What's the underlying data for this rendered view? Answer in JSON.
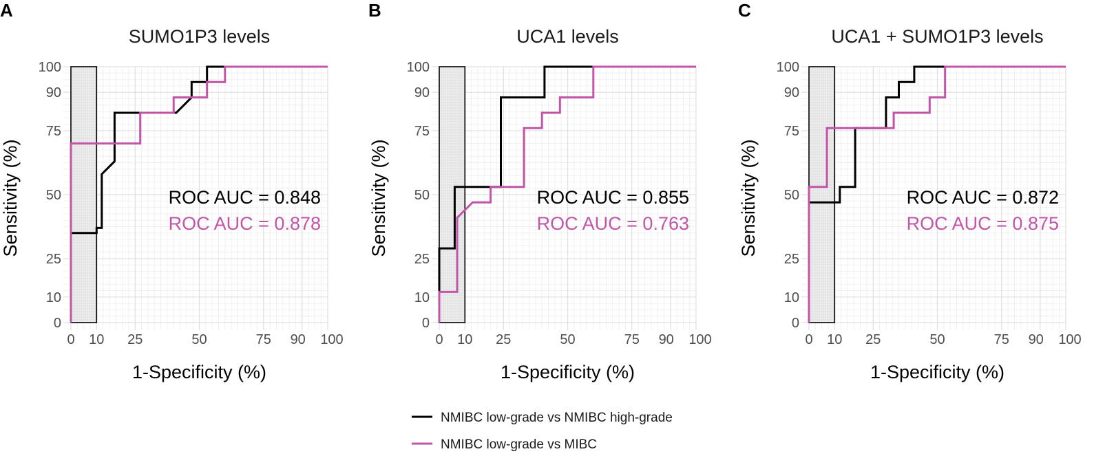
{
  "chart_data": [
    {
      "type": "line",
      "letter": "A",
      "title": "SUMO1P3 levels",
      "xlabel": "1-Specificity (%)",
      "ylabel": "Sensitivity (%)",
      "xlim": [
        0,
        100
      ],
      "ylim": [
        0,
        100
      ],
      "xticks": [
        0,
        10,
        25,
        50,
        75,
        90,
        100
      ],
      "yticks": [
        0,
        10,
        25,
        50,
        75,
        90,
        100
      ],
      "shaded_region": {
        "x": [
          0,
          10
        ],
        "y": [
          0,
          100
        ]
      },
      "series": [
        {
          "name": "NMIBC low-grade vs NMIBC high-grade",
          "color": "#000000",
          "auc_label": "ROC AUC = 0.848",
          "points": [
            [
              0,
              0
            ],
            [
              0,
              35
            ],
            [
              10,
              35
            ],
            [
              10,
              37
            ],
            [
              12,
              37
            ],
            [
              12,
              58
            ],
            [
              17,
              63
            ],
            [
              17,
              82
            ],
            [
              41,
              82
            ],
            [
              47,
              88
            ],
            [
              47,
              94
            ],
            [
              53,
              94
            ],
            [
              53,
              100
            ],
            [
              100,
              100
            ]
          ]
        },
        {
          "name": "NMIBC low-grade vs MIBC",
          "color": "#c255a8",
          "auc_label": "ROC AUC = 0.878",
          "points": [
            [
              0,
              0
            ],
            [
              0,
              70
            ],
            [
              27,
              70
            ],
            [
              27,
              82
            ],
            [
              40,
              82
            ],
            [
              40,
              88
            ],
            [
              53,
              88
            ],
            [
              53,
              94
            ],
            [
              60,
              94
            ],
            [
              60,
              100
            ],
            [
              100,
              100
            ]
          ]
        }
      ]
    },
    {
      "type": "line",
      "letter": "B",
      "title": "UCA1 levels",
      "xlabel": "1-Specificity (%)",
      "ylabel": "Sensitivity (%)",
      "xlim": [
        0,
        100
      ],
      "ylim": [
        0,
        100
      ],
      "xticks": [
        0,
        10,
        25,
        50,
        75,
        90,
        100
      ],
      "yticks": [
        0,
        10,
        25,
        50,
        75,
        90,
        100
      ],
      "shaded_region": {
        "x": [
          0,
          10
        ],
        "y": [
          0,
          100
        ]
      },
      "series": [
        {
          "name": "NMIBC low-grade vs NMIBC high-grade",
          "color": "#000000",
          "auc_label": "ROC AUC = 0.855",
          "points": [
            [
              0,
              0
            ],
            [
              0,
              12
            ],
            [
              0,
              29
            ],
            [
              6,
              29
            ],
            [
              6,
              53
            ],
            [
              24,
              53
            ],
            [
              24,
              88
            ],
            [
              41,
              88
            ],
            [
              41,
              100
            ],
            [
              100,
              100
            ]
          ]
        },
        {
          "name": "NMIBC low-grade vs MIBC",
          "color": "#c255a8",
          "auc_label": "ROC AUC = 0.763",
          "points": [
            [
              0,
              0
            ],
            [
              0,
              12
            ],
            [
              7,
              12
            ],
            [
              7,
              41
            ],
            [
              13,
              47
            ],
            [
              20,
              47
            ],
            [
              20,
              53
            ],
            [
              33,
              53
            ],
            [
              33,
              76
            ],
            [
              40,
              76
            ],
            [
              40,
              82
            ],
            [
              47,
              82
            ],
            [
              47,
              88
            ],
            [
              60,
              88
            ],
            [
              60,
              100
            ],
            [
              100,
              100
            ]
          ]
        }
      ]
    },
    {
      "type": "line",
      "letter": "C",
      "title": "UCA1 + SUMO1P3 levels",
      "xlabel": "1-Specificity (%)",
      "ylabel": "Sensitivity (%)",
      "xlim": [
        0,
        100
      ],
      "ylim": [
        0,
        100
      ],
      "xticks": [
        0,
        10,
        25,
        50,
        75,
        90,
        100
      ],
      "yticks": [
        0,
        10,
        25,
        50,
        75,
        90,
        100
      ],
      "shaded_region": {
        "x": [
          0,
          10
        ],
        "y": [
          0,
          100
        ]
      },
      "series": [
        {
          "name": "NMIBC low-grade vs NMIBC high-grade",
          "color": "#000000",
          "auc_label": "ROC AUC = 0.872",
          "points": [
            [
              0,
              0
            ],
            [
              0,
              47
            ],
            [
              12,
              47
            ],
            [
              12,
              53
            ],
            [
              18,
              53
            ],
            [
              18,
              76
            ],
            [
              30,
              76
            ],
            [
              30,
              88
            ],
            [
              35,
              88
            ],
            [
              35,
              94
            ],
            [
              41,
              94
            ],
            [
              41,
              100
            ],
            [
              100,
              100
            ]
          ]
        },
        {
          "name": "NMIBC low-grade vs MIBC",
          "color": "#c255a8",
          "auc_label": "ROC AUC = 0.875",
          "points": [
            [
              0,
              0
            ],
            [
              0,
              53
            ],
            [
              7,
              53
            ],
            [
              7,
              76
            ],
            [
              33,
              76
            ],
            [
              33,
              82
            ],
            [
              47,
              82
            ],
            [
              47,
              88
            ],
            [
              53,
              88
            ],
            [
              53,
              100
            ],
            [
              100,
              100
            ]
          ]
        }
      ]
    }
  ],
  "legend": {
    "items": [
      {
        "label": "NMIBC low-grade vs NMIBC high-grade",
        "color": "#000000"
      },
      {
        "label": "NMIBC low-grade vs MIBC",
        "color": "#c255a8"
      }
    ]
  }
}
